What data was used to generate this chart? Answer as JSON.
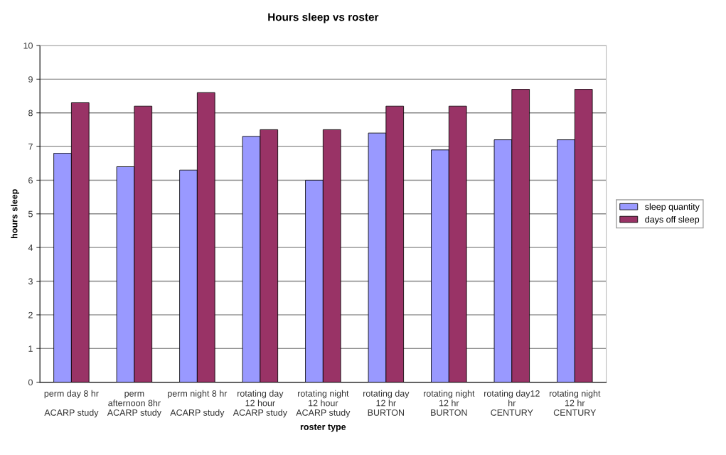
{
  "chart_data": {
    "type": "bar",
    "title": "Hours sleep vs roster",
    "xlabel": "roster type",
    "ylabel": "hours sleep",
    "categories": [
      "perm day 8 hr\n\nACARP study",
      "perm\nafternoon 8hr\nACARP study",
      "perm night 8 hr\n\nACARP study",
      "rotating day\n12 hour\nACARP study",
      "rotating night\n12 hour\nACARP study",
      "rotating day\n12 hr\nBURTON",
      "rotating night\n12 hr\nBURTON",
      "rotating day12\nhr\nCENTURY",
      "rotating night\n12 hr\nCENTURY"
    ],
    "series": [
      {
        "name": "sleep quantity",
        "color": "#9999ff",
        "values": [
          6.8,
          6.4,
          6.3,
          7.3,
          6.0,
          7.4,
          6.9,
          7.2,
          7.2
        ]
      },
      {
        "name": "days off sleep",
        "color": "#993366",
        "values": [
          8.3,
          8.2,
          8.6,
          7.5,
          7.5,
          8.2,
          8.2,
          8.7,
          8.7
        ]
      }
    ],
    "ylim": [
      0,
      10
    ],
    "yticks": [
      0,
      1,
      2,
      3,
      4,
      5,
      6,
      7,
      8,
      9,
      10
    ],
    "grid": "y",
    "legend": "right"
  }
}
